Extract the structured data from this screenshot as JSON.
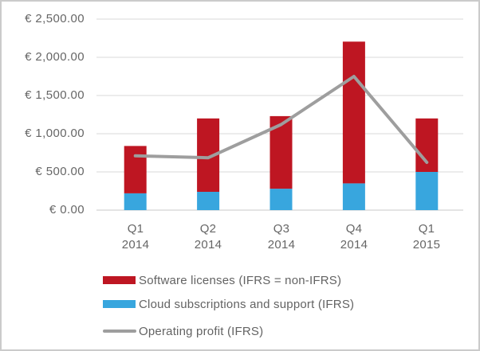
{
  "window": {
    "background": "#ffffff",
    "border_color": "#cbcbcb"
  },
  "chart_data": {
    "type": "bar",
    "subtype": "stacked-column-with-line-overlay",
    "title": "",
    "xlabel": "",
    "ylabel": "",
    "categories": [
      "Q1 2014",
      "Q2 2014",
      "Q3 2014",
      "Q4 2014",
      "Q1 2015"
    ],
    "series": [
      {
        "name": "Software licenses (IFRS = non-IFRS)",
        "chart_type": "bar",
        "stack_position": "top",
        "color": "#be1622",
        "values": [
          620,
          960,
          950,
          1855,
          700
        ]
      },
      {
        "name": "Cloud subscriptions and support (IFRS)",
        "chart_type": "bar",
        "stack_position": "bottom",
        "color": "#38a6de",
        "values": [
          220,
          240,
          280,
          350,
          500
        ]
      },
      {
        "name": "Operating profit (IFRS)",
        "chart_type": "line",
        "color": "#9e9e9e",
        "values": [
          710,
          685,
          1120,
          1750,
          625
        ]
      }
    ],
    "ylim": [
      0,
      2500
    ],
    "y_tick_interval": 500,
    "y_tick_labels": [
      "€ 2,500.00",
      "€ 2,000.00",
      "€ 1,500.00",
      "€ 1,000.00",
      "€ 500.00",
      "€ 0.00"
    ],
    "grid": true,
    "gridline_color": "#d9d9d9",
    "axis_line_color": "#c8c8c8",
    "axis_text_color": "#666666",
    "legend_position": "bottom-left"
  }
}
